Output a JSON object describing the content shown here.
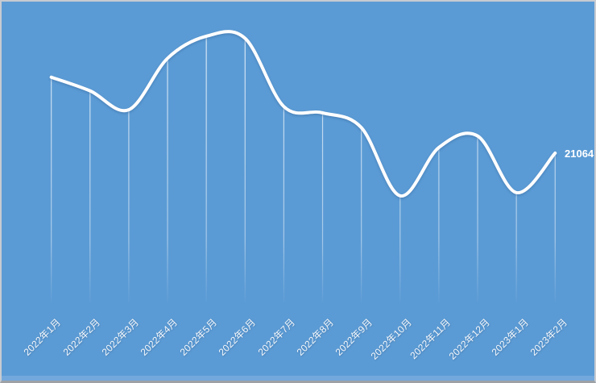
{
  "window": {
    "background_color": "#5b9bd5",
    "bottom_strip_color": "#73a8dd"
  },
  "chart_data": {
    "type": "line",
    "smooth": true,
    "title": "",
    "xlabel": "",
    "ylabel": "",
    "categories": [
      "2022年1月",
      "2022年2月",
      "2022年3月",
      "2022年4月",
      "2022年5月",
      "2022年6月",
      "2022年7月",
      "2022年8月",
      "2022年9月",
      "2022年10月",
      "2022年11月",
      "2022年12月",
      "2023年1月",
      "2023年2月"
    ],
    "values": [
      28300,
      27000,
      25200,
      30100,
      32200,
      32000,
      25500,
      24900,
      23500,
      17000,
      21600,
      22700,
      17300,
      21064
    ],
    "ylim": [
      0,
      35500
    ],
    "grid": false,
    "legend": false,
    "x_label_rotation_deg": 45,
    "line_color": "#ffffff",
    "drop_line_color": "#ffffff",
    "last_point_label": "21064"
  }
}
